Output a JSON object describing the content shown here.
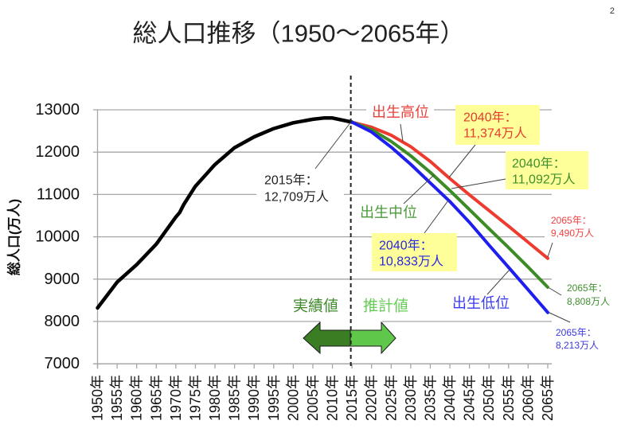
{
  "page": {
    "number": "2"
  },
  "chart_data": {
    "type": "line",
    "title": "総人口推移（1950～2065年）",
    "xlabel": "",
    "ylabel": "総人口(万人)",
    "xlim": [
      1950,
      2065
    ],
    "ylim": [
      7000,
      13000
    ],
    "grid": "horizontal",
    "yticks": [
      7000,
      8000,
      9000,
      10000,
      11000,
      12000,
      13000
    ],
    "xticks": [
      1950,
      1955,
      1960,
      1965,
      1970,
      1975,
      1980,
      1985,
      1990,
      1995,
      2000,
      2005,
      2010,
      2015,
      2020,
      2025,
      2030,
      2035,
      2040,
      2045,
      2050,
      2055,
      2060,
      2065
    ],
    "xtick_labels": [
      "1950年",
      "1955年",
      "1960年",
      "1965年",
      "1970年",
      "1975年",
      "1980年",
      "1985年",
      "1990年",
      "1995年",
      "2000年",
      "2005年",
      "2010年",
      "2015年",
      "2020年",
      "2025年",
      "2030年",
      "2035年",
      "2040年",
      "2045年",
      "2050年",
      "2055年",
      "2060年",
      "2065年"
    ],
    "divider_year": 2015,
    "series": [
      {
        "id": "actual",
        "name": "実績値",
        "color": "#000000",
        "x": [
          1950,
          1955,
          1960,
          1965,
          1970,
          1971,
          1972,
          1975,
          1980,
          1985,
          1990,
          1995,
          2000,
          2005,
          2008,
          2010,
          2015
        ],
        "values": [
          8320,
          8928,
          9342,
          9828,
          10467,
          10578,
          10760,
          11194,
          11706,
          12105,
          12361,
          12557,
          12693,
          12777,
          12808,
          12806,
          12709
        ]
      },
      {
        "id": "high",
        "name": "出生高位",
        "color": "#ee3b2f",
        "x": [
          2015,
          2020,
          2025,
          2030,
          2035,
          2040,
          2045,
          2050,
          2055,
          2060,
          2065
        ],
        "values": [
          12709,
          12591,
          12400,
          12130,
          11780,
          11374,
          10990,
          10620,
          10250,
          9870,
          9490
        ]
      },
      {
        "id": "medium",
        "name": "出生中位",
        "color": "#3c8c26",
        "x": [
          2015,
          2020,
          2025,
          2030,
          2035,
          2040,
          2045,
          2050,
          2055,
          2060,
          2065
        ],
        "values": [
          12709,
          12532,
          12254,
          11913,
          11522,
          11092,
          10642,
          10192,
          9744,
          9284,
          8808
        ]
      },
      {
        "id": "low",
        "name": "出生低位",
        "color": "#1e1ef0",
        "x": [
          2015,
          2020,
          2025,
          2030,
          2035,
          2040,
          2045,
          2050,
          2055,
          2060,
          2065
        ],
        "values": [
          12709,
          12475,
          12118,
          11713,
          11273,
          10833,
          10341,
          9805,
          9279,
          8748,
          8213
        ]
      }
    ],
    "annotations": {
      "point_2015": {
        "lines": [
          "2015年：",
          "12,709万人"
        ],
        "color": "#222222"
      },
      "high_label": {
        "text": "出生高位",
        "color": "#e8403a"
      },
      "medium_label": {
        "text": "出生中位",
        "color": "#4a9a3a"
      },
      "low_label": {
        "text": "出生低位",
        "color": "#3a3aee"
      },
      "high_2040": {
        "lines": [
          "2040年：",
          "11,374万人"
        ],
        "color": "#e8392e",
        "box": "#ffff99"
      },
      "medium_2040": {
        "lines": [
          "2040年：",
          "11,092万人"
        ],
        "color": "#3f8f2f",
        "box": "#ffff99"
      },
      "low_2040": {
        "lines": [
          "2040年：",
          "10,833万人"
        ],
        "color": "#2727e0",
        "box": "#ffff99"
      },
      "high_2065": {
        "lines": [
          "2065年：",
          "9,490万人"
        ],
        "color": "#f04040"
      },
      "medium_2065": {
        "lines": [
          "2065年：",
          "8,808万人"
        ],
        "color": "#3f8f2f"
      },
      "low_2065": {
        "lines": [
          "2065年：",
          "8,213万人"
        ],
        "color": "#3a3ae0"
      },
      "actual_region": {
        "text": "実績値",
        "color": "#3e8a2b"
      },
      "projection_region": {
        "text": "推計値",
        "color": "#66cc55"
      }
    },
    "arrow_colors": {
      "actual": "#3a7d22",
      "projection": "#5fc84a"
    }
  }
}
